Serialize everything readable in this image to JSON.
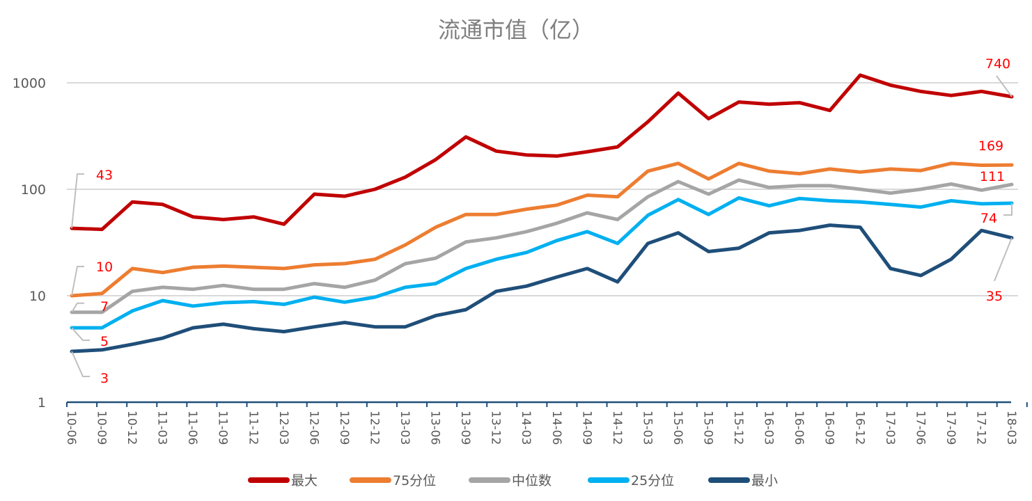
{
  "chart_data": {
    "type": "line",
    "title": "流通市值（亿）",
    "xlabel": "",
    "ylabel": "",
    "yscale": "log",
    "ylim": [
      1,
      1000
    ],
    "yticks": [
      1,
      10,
      100,
      1000
    ],
    "ytick_labels": [
      "1",
      "10",
      "100",
      "1000"
    ],
    "grid": true,
    "legend_position": "bottom",
    "x": [
      "10-06",
      "10-09",
      "10-12",
      "11-03",
      "11-06",
      "11-09",
      "11-12",
      "12-03",
      "12-06",
      "12-09",
      "12-12",
      "13-03",
      "13-06",
      "13-09",
      "13-12",
      "14-03",
      "14-06",
      "14-09",
      "14-12",
      "15-03",
      "15-06",
      "15-09",
      "15-12",
      "16-03",
      "16-06",
      "16-09",
      "16-12",
      "17-03",
      "17-06",
      "17-09",
      "17-12",
      "18-03"
    ],
    "series": [
      {
        "name": "最大",
        "color": "#c00000",
        "values": [
          43,
          42,
          76,
          72,
          55,
          52,
          55,
          47,
          90,
          86,
          100,
          130,
          190,
          310,
          228,
          210,
          205,
          225,
          250,
          430,
          800,
          460,
          660,
          630,
          650,
          550,
          1180,
          950,
          830,
          760,
          830,
          740
        ],
        "labels": [
          {
            "index": 0,
            "text": "43"
          },
          {
            "index": 31,
            "text": "740"
          }
        ]
      },
      {
        "name": "75分位",
        "color": "#ed7d31",
        "values": [
          10,
          10.5,
          18,
          16.5,
          18.5,
          19,
          18.5,
          18,
          19.5,
          20,
          22,
          30,
          44,
          58,
          58,
          65,
          71,
          88,
          85,
          148,
          175,
          125,
          175,
          148,
          140,
          155,
          145,
          155,
          150,
          175,
          168,
          169
        ],
        "labels": [
          {
            "index": 0,
            "text": "10"
          },
          {
            "index": 31,
            "text": "169"
          }
        ]
      },
      {
        "name": "中位数",
        "color": "#a5a5a5",
        "values": [
          7,
          7,
          11,
          12,
          11.5,
          12.5,
          11.5,
          11.5,
          13,
          12,
          14,
          20,
          22.5,
          32,
          35,
          40,
          48,
          60,
          52,
          85,
          118,
          90,
          122,
          104,
          108,
          108,
          100,
          92,
          100,
          112,
          98,
          111
        ],
        "labels": [
          {
            "index": 0,
            "text": "7"
          },
          {
            "index": 31,
            "text": "111"
          }
        ]
      },
      {
        "name": "25分位",
        "color": "#00b0f0",
        "values": [
          5,
          5,
          7.2,
          9,
          8,
          8.6,
          8.8,
          8.3,
          9.7,
          8.7,
          9.7,
          12,
          13,
          18,
          22,
          25.5,
          33,
          40,
          31,
          57,
          80,
          58,
          83,
          70,
          82,
          78,
          76,
          72,
          68,
          78,
          73,
          74
        ],
        "labels": [
          {
            "index": 0,
            "text": "5"
          },
          {
            "index": 31,
            "text": "74"
          }
        ]
      },
      {
        "name": "最小",
        "color": "#1f4e79",
        "values": [
          3,
          3.1,
          3.5,
          4,
          5,
          5.4,
          4.9,
          4.6,
          5.1,
          5.6,
          5.1,
          5.1,
          6.5,
          7.4,
          11,
          12.3,
          15,
          18,
          13.5,
          31,
          39,
          26,
          28,
          39,
          41,
          46,
          44,
          18,
          15.5,
          22,
          41,
          35
        ],
        "labels": [
          {
            "index": 0,
            "text": "3"
          },
          {
            "index": 31,
            "text": "35"
          }
        ]
      }
    ]
  }
}
